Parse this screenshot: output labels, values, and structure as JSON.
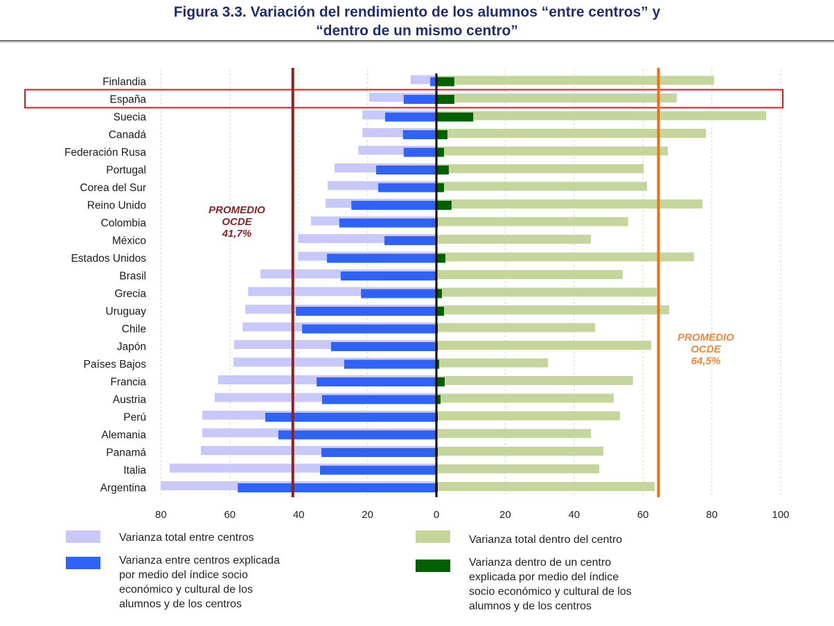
{
  "header": {
    "title_line1": "Figura 3.3. Variación del rendimiento de los alumnos “entre centros” y",
    "title_line2": "“dentro de un mismo centro”"
  },
  "chart_data": {
    "type": "bar",
    "orientation": "horizontal-diverging",
    "title": "Figura 3.3. Variación del rendimiento de los alumnos “entre centros” y “dentro de un mismo centro”",
    "xlabel": "",
    "ylabel": "",
    "xlim": [
      -80,
      100
    ],
    "x_ticks": [
      80,
      60,
      40,
      20,
      0,
      20,
      40,
      60,
      80,
      100
    ],
    "x_tick_labels": [
      "80",
      "60",
      "40",
      "20",
      "0",
      "20",
      "40",
      "60",
      "80",
      "100"
    ],
    "grid": true,
    "highlighted_category": "España",
    "categories": [
      "Finlandia",
      "España",
      "Suecia",
      "Canadá",
      "Federación Rusa",
      "Portugal",
      "Corea del Sur",
      "Reino Unido",
      "Colombia",
      "México",
      "Estados Unidos",
      "Brasil",
      "Grecia",
      "Uruguay",
      "Chile",
      "Japón",
      "Países Bajos",
      "Francia",
      "Austria",
      "Perú",
      "Alemania",
      "Panamá",
      "Italia",
      "Argentina"
    ],
    "series": [
      {
        "name": "Varianza total entre centros",
        "side": "left",
        "color": "#c8c8fa",
        "values": [
          7.5,
          19.5,
          21.5,
          21.5,
          22.7,
          29.6,
          31.6,
          32.2,
          36.4,
          40.2,
          40.2,
          51.1,
          54.7,
          55.5,
          56.3,
          58.8,
          59.0,
          63.4,
          64.4,
          68.0,
          68.0,
          68.4,
          77.5,
          80.1
        ]
      },
      {
        "name": "Varianza entre centros explicada por medio del índice socio económico y cultural de los alumnos y de los centros",
        "side": "left",
        "color": "#2f62f5",
        "values": [
          1.8,
          9.5,
          14.9,
          9.7,
          9.5,
          17.5,
          16.9,
          24.7,
          28.2,
          15.1,
          31.8,
          27.8,
          21.9,
          40.8,
          39.0,
          30.6,
          26.8,
          34.8,
          33.2,
          49.7,
          45.9,
          33.4,
          33.8,
          57.7
        ]
      },
      {
        "name": "Varianza total dentro del  centro",
        "side": "right",
        "color": "#c4d69c",
        "values": [
          80.7,
          69.8,
          95.8,
          78.3,
          67.2,
          60.2,
          61.2,
          77.3,
          55.7,
          44.9,
          74.8,
          54.1,
          64.0,
          67.6,
          46.1,
          62.4,
          32.4,
          57.1,
          51.5,
          53.3,
          44.9,
          48.5,
          47.3,
          63.4
        ]
      },
      {
        "name": "Varianza dentro de un centro explicada por medio del índice socio económico y cultural de los alumnos y de los centros",
        "side": "right",
        "color": "#006000",
        "values": [
          5.2,
          5.2,
          10.7,
          3.2,
          2.2,
          3.6,
          2.2,
          4.4,
          0.4,
          0.0,
          2.6,
          0.2,
          1.6,
          2.2,
          0.4,
          0.4,
          0.8,
          2.4,
          1.2,
          0.4,
          0.2,
          0.4,
          0.2,
          0.4
        ]
      }
    ],
    "reference_lines": [
      {
        "name": "PROMEDIO OCDE entre centros",
        "side": "left",
        "value": 41.7,
        "label_lines": [
          "PROMEDIO",
          "OCDE",
          "41,7%"
        ],
        "color": "#8b2323"
      },
      {
        "name": "PROMEDIO OCDE dentro del centro",
        "side": "right",
        "value": 64.5,
        "label_lines": [
          "PROMEDIO",
          "OCDE",
          "64,5%"
        ],
        "color": "#e8721c"
      }
    ],
    "legend": {
      "placement": "bottom",
      "items": [
        {
          "label_lines": [
            "Varianza total entre centros"
          ],
          "color": "#c8c8fa"
        },
        {
          "label_lines": [
            "Varianza entre centros explicada",
            "por medio del índice socio",
            "económico y cultural de los",
            "alumnos y de los centros"
          ],
          "color": "#2f62f5"
        },
        {
          "label_lines": [
            "Varianza total dentro del  centro"
          ],
          "color": "#c4d69c"
        },
        {
          "label_lines": [
            "Varianza dentro de un centro",
            "explicada por medio del índice",
            "socio económico y cultural de los",
            "alumnos y de los centros"
          ],
          "color": "#006000"
        }
      ]
    }
  }
}
